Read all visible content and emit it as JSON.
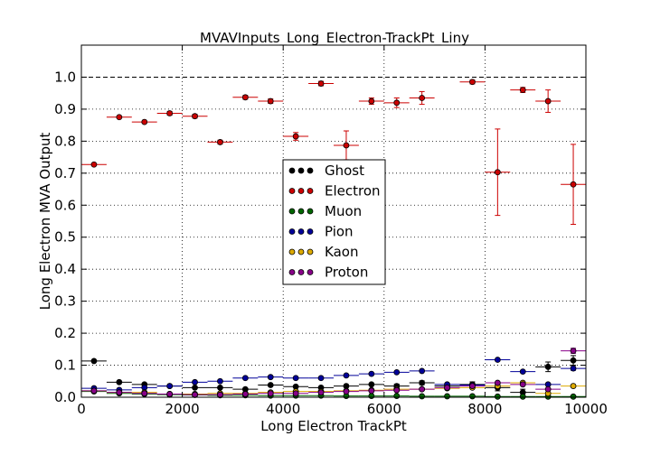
{
  "chart_data": {
    "type": "scatter",
    "title": "MVAVInputs_Long_Electron-TrackPt_Liny",
    "xlabel": "Long Electron TrackPt",
    "ylabel": "Long Electron MVA Output",
    "xlim": [
      0,
      10000
    ],
    "ylim": [
      0,
      1.1
    ],
    "xticks": [
      0,
      2000,
      4000,
      6000,
      8000,
      10000
    ],
    "xtick_labels": [
      "0",
      "2000",
      "4000",
      "6000",
      "8000",
      "10000"
    ],
    "yticks": [
      0.0,
      0.1,
      0.2,
      0.3,
      0.4,
      0.5,
      0.6,
      0.7,
      0.8,
      0.9,
      1.0
    ],
    "ytick_labels": [
      "0.0",
      "0.1",
      "0.2",
      "0.3",
      "0.4",
      "0.5",
      "0.6",
      "0.7",
      "0.8",
      "0.9",
      "1.0"
    ],
    "reference_line_y": 1.0,
    "grid": true,
    "legend_position": "center",
    "bin_width": 500,
    "x": [
      250,
      750,
      1250,
      1750,
      2250,
      2750,
      3250,
      3750,
      4250,
      4750,
      5250,
      5750,
      6250,
      6750,
      7250,
      7750,
      8250,
      8750,
      9250,
      9750
    ],
    "series": [
      {
        "name": "Ghost",
        "color": "#000000",
        "values": [
          0.113,
          0.047,
          0.04,
          0.035,
          0.03,
          0.03,
          0.025,
          0.038,
          0.033,
          0.03,
          0.035,
          0.04,
          0.035,
          0.045,
          0.035,
          0.04,
          0.03,
          0.015,
          0.095,
          0.115
        ],
        "yerr": [
          0.003,
          0.003,
          0.003,
          0.003,
          0.003,
          0.003,
          0.003,
          0.003,
          0.004,
          0.004,
          0.005,
          0.005,
          0.006,
          0.006,
          0.007,
          0.008,
          0.01,
          0.01,
          0.015,
          0.015
        ]
      },
      {
        "name": "Electron",
        "color": "#cc0000",
        "values": [
          0.727,
          0.875,
          0.86,
          0.887,
          0.878,
          0.797,
          0.937,
          0.925,
          0.815,
          0.98,
          0.787,
          0.925,
          0.92,
          0.935,
          null,
          0.985,
          0.703,
          0.96,
          0.925,
          0.665
        ],
        "yerr": [
          0.004,
          0.005,
          0.005,
          0.006,
          0.006,
          0.006,
          0.006,
          0.007,
          0.012,
          0.007,
          0.045,
          0.01,
          0.015,
          0.02,
          null,
          0.006,
          0.135,
          0.008,
          0.035,
          0.125
        ]
      },
      {
        "name": "Muon",
        "color": "#006600",
        "values": [
          0.018,
          0.012,
          0.01,
          0.008,
          0.007,
          0.006,
          0.006,
          0.005,
          0.005,
          0.005,
          0.004,
          0.004,
          0.004,
          0.003,
          0.003,
          0.003,
          0.002,
          0.002,
          0.002,
          0.002
        ],
        "yerr": [
          0.001,
          0.001,
          0.001,
          0.001,
          0.001,
          0.001,
          0.001,
          0.001,
          0.001,
          0.001,
          0.001,
          0.001,
          0.001,
          0.001,
          0.001,
          0.001,
          0.001,
          0.001,
          0.001,
          0.001
        ]
      },
      {
        "name": "Pion",
        "color": "#000099",
        "values": [
          0.028,
          0.023,
          0.03,
          0.035,
          0.047,
          0.05,
          0.06,
          0.063,
          0.06,
          0.06,
          0.068,
          0.073,
          0.078,
          0.082,
          0.04,
          0.038,
          0.117,
          0.08,
          0.04,
          0.09
        ],
        "yerr": [
          0.001,
          0.001,
          0.001,
          0.001,
          0.002,
          0.002,
          0.002,
          0.002,
          0.002,
          0.002,
          0.003,
          0.003,
          0.003,
          0.003,
          0.003,
          0.003,
          0.005,
          0.005,
          0.005,
          0.006
        ]
      },
      {
        "name": "Kaon",
        "color": "#ddaa00",
        "values": [
          0.02,
          0.015,
          0.015,
          0.01,
          0.01,
          0.012,
          0.012,
          0.015,
          0.018,
          0.018,
          0.02,
          0.022,
          0.025,
          0.025,
          0.028,
          0.03,
          0.035,
          0.045,
          0.012,
          0.035
        ],
        "yerr": [
          0.001,
          0.001,
          0.001,
          0.001,
          0.001,
          0.001,
          0.001,
          0.001,
          0.002,
          0.002,
          0.002,
          0.002,
          0.002,
          0.003,
          0.003,
          0.003,
          0.004,
          0.005,
          0.004,
          0.005
        ]
      },
      {
        "name": "Proton",
        "color": "#880088",
        "values": [
          0.02,
          0.015,
          0.012,
          0.01,
          0.008,
          0.008,
          0.01,
          0.012,
          0.012,
          0.015,
          0.018,
          0.02,
          0.022,
          0.025,
          0.03,
          0.035,
          0.045,
          0.04,
          0.025,
          0.145
        ],
        "yerr": [
          0.001,
          0.001,
          0.001,
          0.001,
          0.001,
          0.001,
          0.001,
          0.001,
          0.002,
          0.002,
          0.002,
          0.002,
          0.002,
          0.003,
          0.003,
          0.003,
          0.004,
          0.005,
          0.004,
          0.008
        ]
      }
    ]
  }
}
